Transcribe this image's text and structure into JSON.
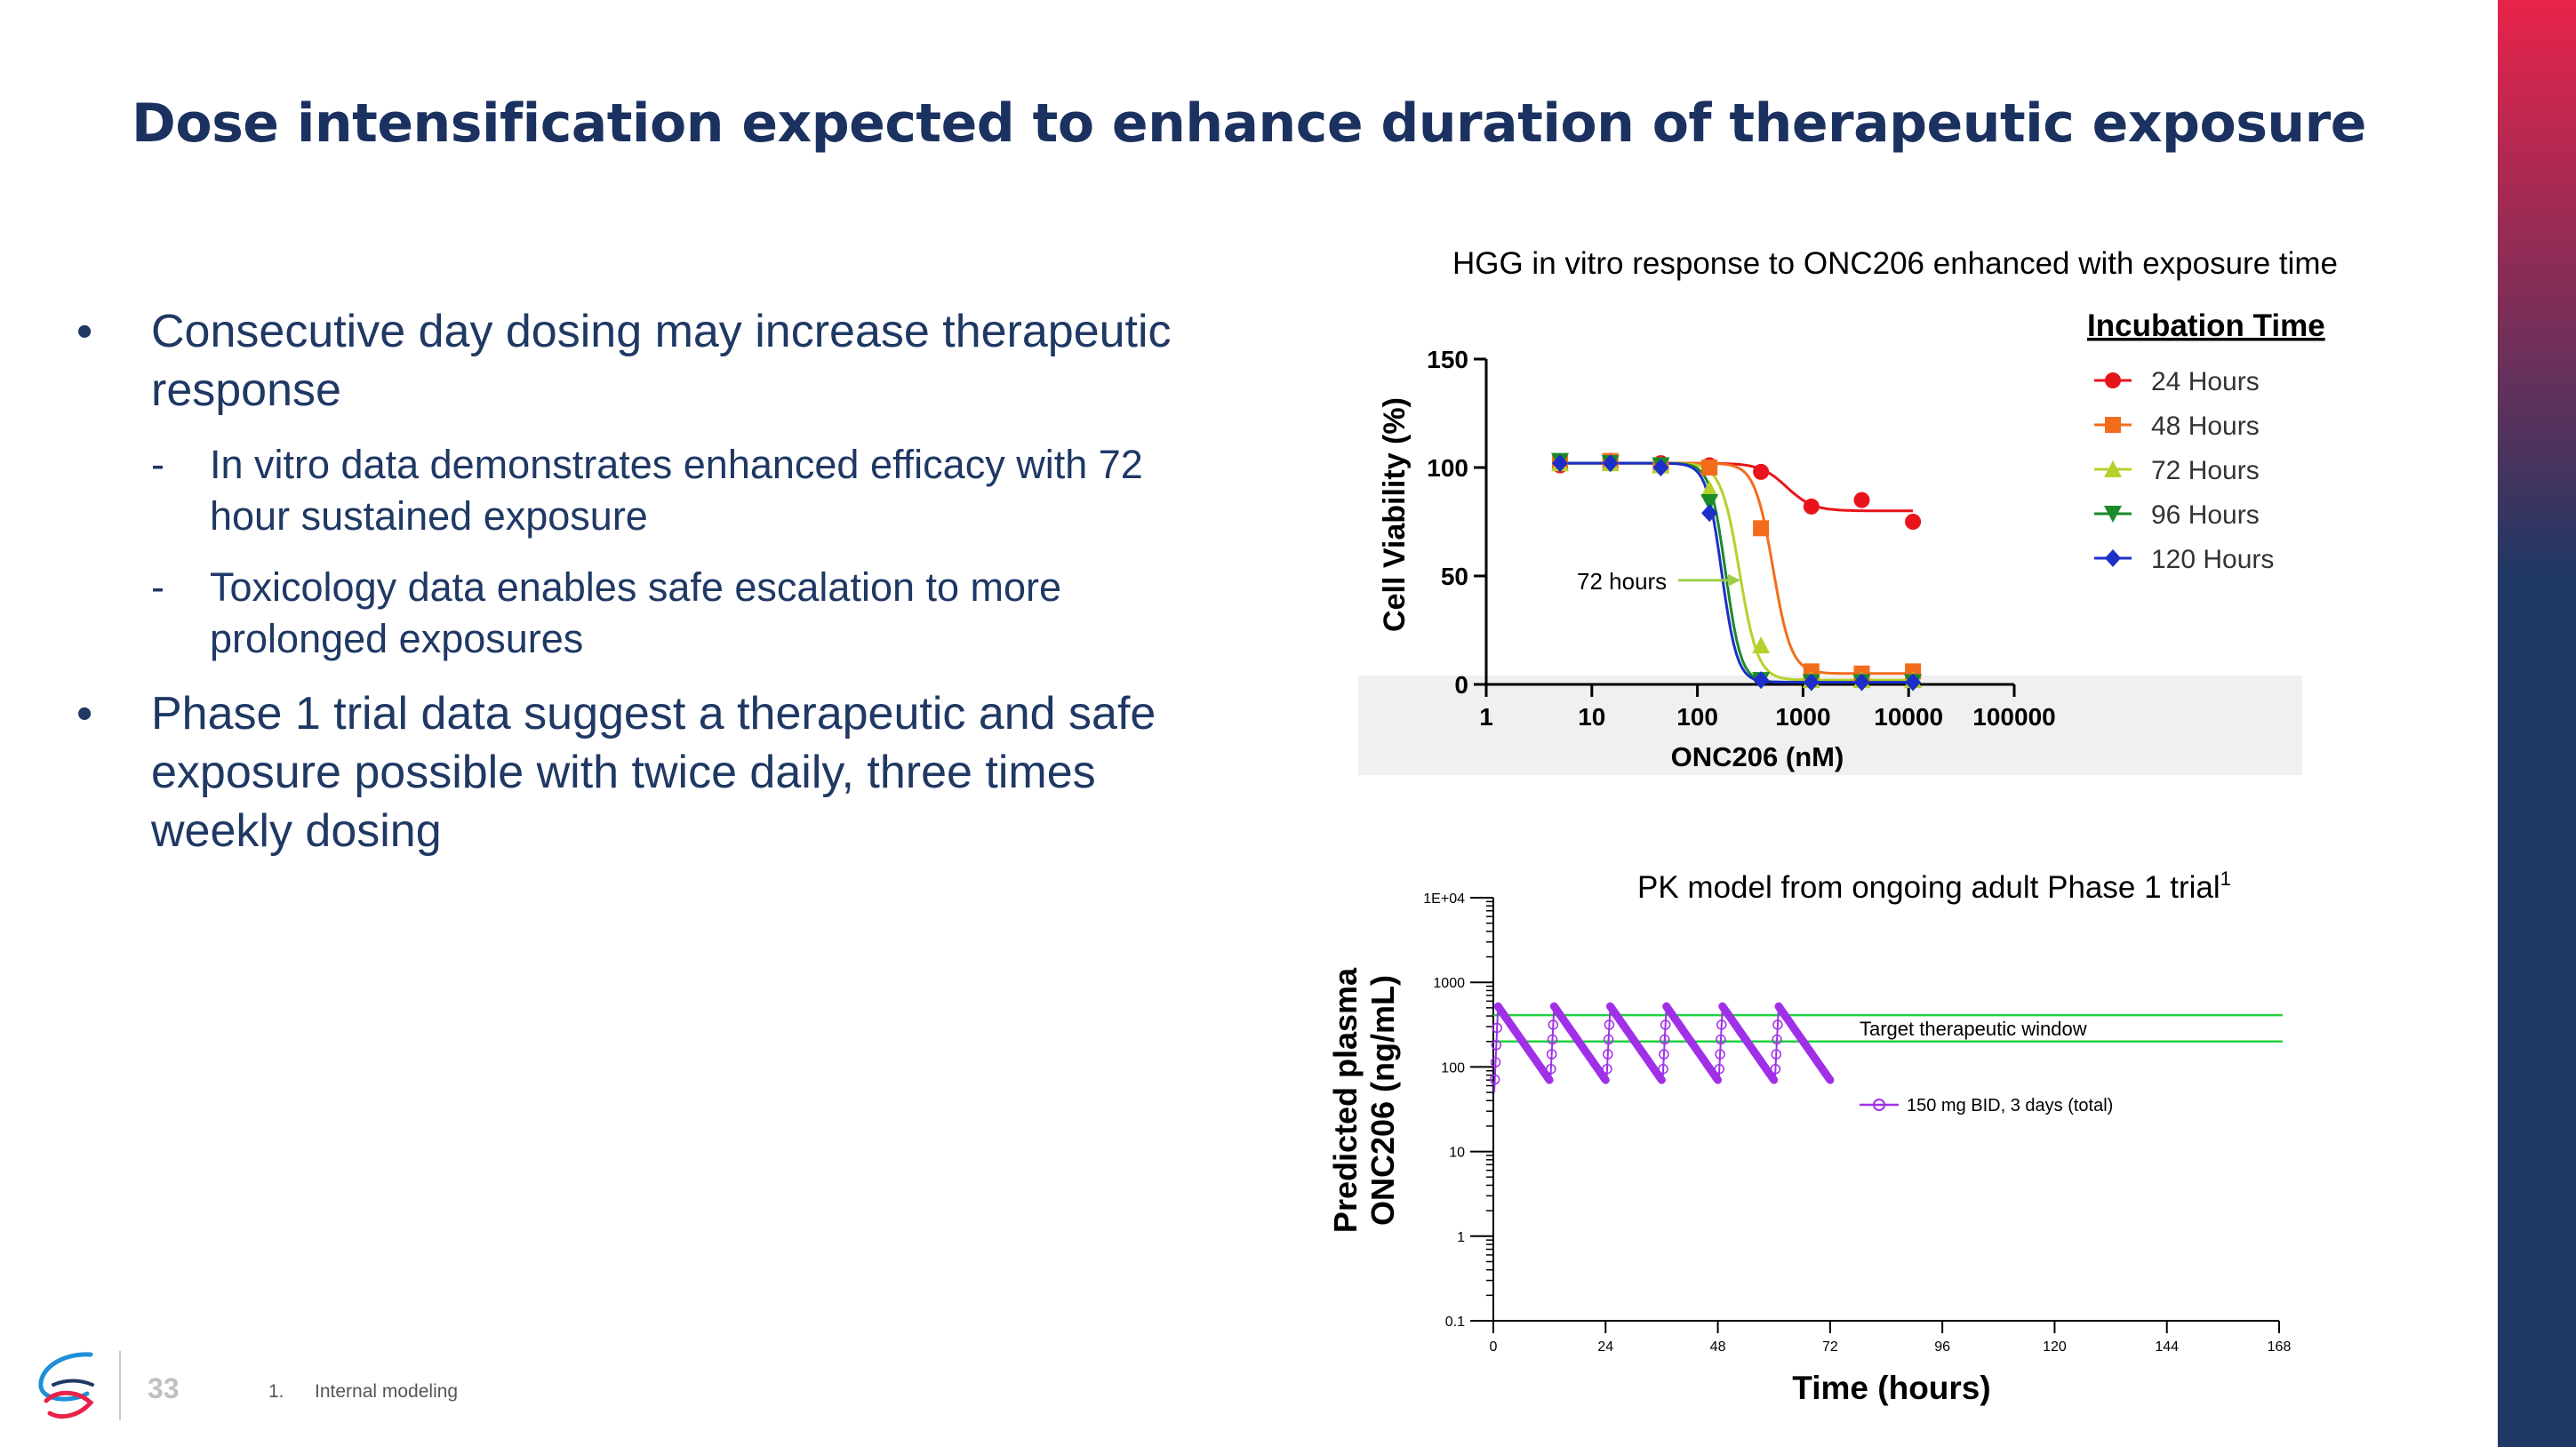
{
  "slide": {
    "title": "Dose intensification expected to enhance duration of therapeutic exposure",
    "page_number": "33",
    "footnote_number": "1.",
    "footnote_text": "Internal modeling",
    "accent_top": "#e8234a",
    "accent_bottom": "#1f3864"
  },
  "bullets": [
    {
      "text": "Consecutive day dosing may increase therapeutic response",
      "sub": [
        "In vitro data demonstrates enhanced efficacy with 72 hour sustained exposure",
        "Toxicology data enables safe escalation to more prolonged exposures"
      ]
    },
    {
      "text": "Phase 1 trial data suggest a therapeutic and safe exposure possible with twice daily, three times weekly dosing",
      "sub": []
    }
  ],
  "bullet_symbol": "•",
  "dash_symbol": "-",
  "chart_data": [
    {
      "type": "scatter",
      "title": "HGG in vitro response to ONC206 enhanced with exposure time",
      "xlabel": "ONC206 (nM)",
      "ylabel": "Cell Viability (%)",
      "xscale": "log",
      "xlim": [
        1,
        100000
      ],
      "ylim": [
        0,
        150
      ],
      "xticks": [
        "1",
        "10",
        "100",
        "1000",
        "10000",
        "100000"
      ],
      "yticks": [
        "0",
        "50",
        "100",
        "150"
      ],
      "legend_title": "Incubation Time",
      "legend_position": "right",
      "annotation": "72 hours",
      "x": [
        5,
        15,
        45,
        130,
        400,
        1200,
        3600,
        11000
      ],
      "series": [
        {
          "name": "24 Hours",
          "color": "#e8141c",
          "marker": "circle",
          "values": [
            101,
            103,
            102,
            101,
            98,
            82,
            85,
            75
          ]
        },
        {
          "name": "48 Hours",
          "color": "#f36c1c",
          "marker": "square",
          "values": [
            102,
            103,
            101,
            100,
            72,
            6,
            5,
            6
          ]
        },
        {
          "name": "72 Hours",
          "color": "#b7d12a",
          "marker": "triangle-up",
          "values": [
            102,
            102,
            101,
            90,
            18,
            2,
            2,
            2
          ]
        },
        {
          "name": "96 Hours",
          "color": "#1a8a2a",
          "marker": "triangle-down",
          "values": [
            103,
            102,
            101,
            84,
            2,
            1,
            1,
            1
          ]
        },
        {
          "name": "120 Hours",
          "color": "#1c2fc8",
          "marker": "diamond",
          "values": [
            102,
            102,
            100,
            79,
            2,
            1,
            1,
            1
          ]
        }
      ],
      "curves": [
        {
          "top": 102,
          "bottom": 80,
          "ec50": 700,
          "hill": 3.5
        },
        {
          "top": 102,
          "bottom": 5,
          "ec50": 520,
          "hill": 5
        },
        {
          "top": 102,
          "bottom": 2,
          "ec50": 250,
          "hill": 5
        },
        {
          "top": 102,
          "bottom": 1,
          "ec50": 185,
          "hill": 6
        },
        {
          "top": 102,
          "bottom": 1,
          "ec50": 170,
          "hill": 6
        }
      ]
    },
    {
      "type": "line",
      "title": "PK model from ongoing adult Phase 1 trial",
      "title_superscript": "1",
      "xlabel": "Time (hours)",
      "ylabel_line1": "Predicted plasma",
      "ylabel_line2": "ONC206 (ng/mL)",
      "xscale": "linear",
      "yscale": "log",
      "xlim": [
        0,
        168
      ],
      "ylim": [
        0.1,
        10000
      ],
      "xticks": [
        "0",
        "24",
        "48",
        "72",
        "96",
        "120",
        "144",
        "168"
      ],
      "yticks": [
        "0.1",
        "1",
        "10",
        "100",
        "1000",
        "1E+04"
      ],
      "target_window": {
        "label": "Target therapeutic window",
        "low": 200,
        "high": 410,
        "color": "#22d140"
      },
      "series": [
        {
          "name": "150 mg BID, 3 days (total)",
          "color": "#a030e8",
          "dose_times": [
            0,
            12,
            24,
            36,
            48,
            60
          ],
          "peak": 520,
          "trough": 70,
          "duration": 12
        }
      ]
    }
  ]
}
